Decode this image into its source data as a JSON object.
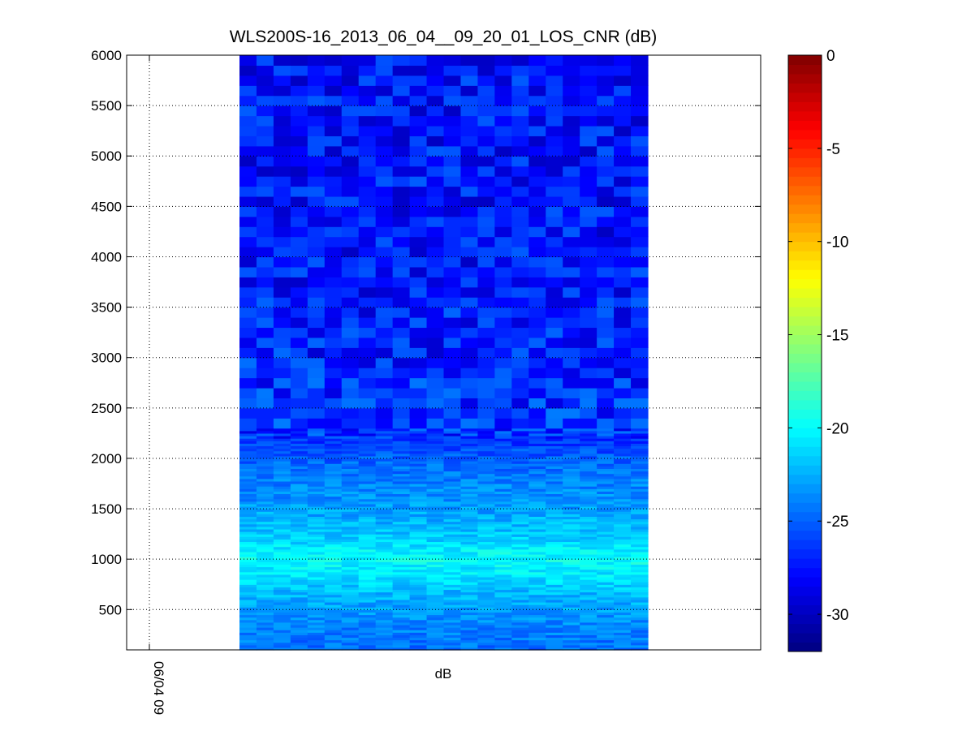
{
  "chart_data": {
    "type": "heatmap",
    "title": "WLS200S-16_2013_06_04__09_20_01_LOS_CNR (dB)",
    "xlabel": "dB",
    "ylabel": "",
    "x_tick_labels": [
      "06/04 09"
    ],
    "y_ticks": [
      500,
      1000,
      1500,
      2000,
      2500,
      3000,
      3500,
      4000,
      4500,
      5000,
      5500,
      6000
    ],
    "ylim": [
      100,
      6000
    ],
    "grid": true,
    "colorbar": {
      "colormap": "jet",
      "range": [
        -32,
        0
      ],
      "ticks": [
        0,
        -5,
        -10,
        -15,
        -20,
        -25,
        -30
      ]
    },
    "time_columns": 24,
    "profile": {
      "altitude": [
        100,
        300,
        500,
        700,
        800,
        900,
        1000,
        1100,
        1200,
        1400,
        1600,
        1800,
        2000,
        2200,
        2600,
        3000,
        4000,
        5000,
        6000
      ],
      "cnr_db": [
        -24.5,
        -24.0,
        -23.0,
        -22.0,
        -21.0,
        -20.5,
        -19.8,
        -20.5,
        -21.5,
        -22.5,
        -23.5,
        -24.0,
        -25.0,
        -26.5,
        -26.5,
        -27.0,
        -27.5,
        -27.5,
        -27.5
      ]
    }
  }
}
